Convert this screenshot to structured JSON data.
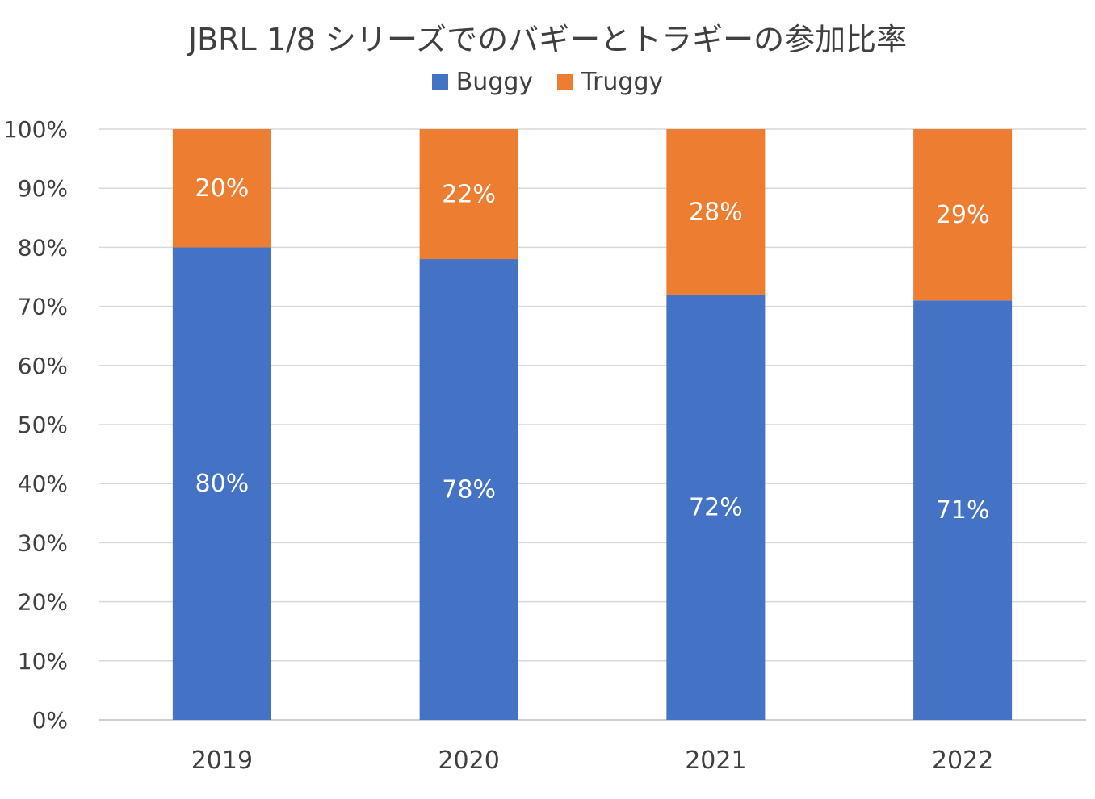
{
  "chart_data": {
    "type": "bar",
    "stacked": true,
    "title": "JBRL 1/8 シリーズでのバギーとトラギーの参加比率",
    "categories": [
      "2019",
      "2020",
      "2021",
      "2022"
    ],
    "series": [
      {
        "name": "Buggy",
        "values": [
          80,
          78,
          72,
          71
        ],
        "labels": [
          "80%",
          "78%",
          "72%",
          "71%"
        ],
        "color": "#4472C4"
      },
      {
        "name": "Truggy",
        "values": [
          20,
          22,
          28,
          29
        ],
        "labels": [
          "20%",
          "22%",
          "28%",
          "29%"
        ],
        "color": "#ED7D31"
      }
    ],
    "ylim": [
      0,
      100
    ],
    "yticks": [
      "0%",
      "10%",
      "20%",
      "30%",
      "40%",
      "50%",
      "60%",
      "70%",
      "80%",
      "90%",
      "100%"
    ],
    "grid": true,
    "legend_position": "top",
    "xlabel": "",
    "ylabel": ""
  }
}
